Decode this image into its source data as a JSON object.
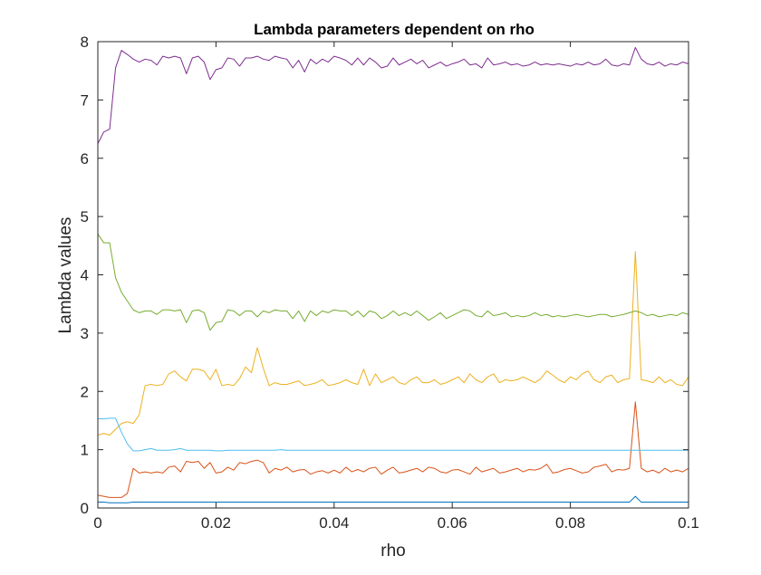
{
  "chart_data": {
    "type": "line",
    "title": "Lambda parameters dependent on rho",
    "xlabel": "rho",
    "ylabel": "Lambda values",
    "xlim": [
      0,
      0.1
    ],
    "ylim": [
      0,
      8
    ],
    "xticks": [
      0,
      0.02,
      0.04,
      0.06,
      0.08,
      0.1
    ],
    "xtick_labels": [
      "0",
      "0.02",
      "0.04",
      "0.06",
      "0.08",
      "0.1"
    ],
    "yticks": [
      0,
      1,
      2,
      3,
      4,
      5,
      6,
      7,
      8
    ],
    "ytick_labels": [
      "0",
      "1",
      "2",
      "3",
      "4",
      "5",
      "6",
      "7",
      "8"
    ],
    "grid": false,
    "legend": "none",
    "x": [
      0,
      0.001,
      0.002,
      0.003,
      0.004,
      0.005,
      0.006,
      0.007,
      0.008,
      0.009,
      0.01,
      0.011,
      0.012,
      0.013,
      0.014,
      0.015,
      0.016,
      0.017,
      0.018,
      0.019,
      0.02,
      0.021,
      0.022,
      0.023,
      0.024,
      0.025,
      0.026,
      0.027,
      0.028,
      0.029,
      0.03,
      0.031,
      0.032,
      0.033,
      0.034,
      0.035,
      0.036,
      0.037,
      0.038,
      0.039,
      0.04,
      0.041,
      0.042,
      0.043,
      0.044,
      0.045,
      0.046,
      0.047,
      0.048,
      0.049,
      0.05,
      0.051,
      0.052,
      0.053,
      0.054,
      0.055,
      0.056,
      0.057,
      0.058,
      0.059,
      0.06,
      0.061,
      0.062,
      0.063,
      0.064,
      0.065,
      0.066,
      0.067,
      0.068,
      0.069,
      0.07,
      0.071,
      0.072,
      0.073,
      0.074,
      0.075,
      0.076,
      0.077,
      0.078,
      0.079,
      0.08,
      0.081,
      0.082,
      0.083,
      0.084,
      0.085,
      0.086,
      0.087,
      0.088,
      0.089,
      0.09,
      0.091,
      0.092,
      0.093,
      0.094,
      0.095,
      0.096,
      0.097,
      0.098,
      0.099,
      0.1
    ],
    "series": [
      {
        "color": "#0072BD",
        "values": [
          0.1,
          0.1,
          0.09,
          0.09,
          0.09,
          0.09,
          0.1,
          0.1,
          0.1,
          0.1,
          0.1,
          0.1,
          0.1,
          0.1,
          0.1,
          0.1,
          0.1,
          0.1,
          0.1,
          0.1,
          0.1,
          0.1,
          0.1,
          0.1,
          0.1,
          0.1,
          0.1,
          0.1,
          0.1,
          0.1,
          0.1,
          0.1,
          0.1,
          0.1,
          0.1,
          0.1,
          0.1,
          0.1,
          0.1,
          0.1,
          0.1,
          0.1,
          0.1,
          0.1,
          0.1,
          0.1,
          0.1,
          0.1,
          0.1,
          0.1,
          0.1,
          0.1,
          0.1,
          0.1,
          0.1,
          0.1,
          0.1,
          0.1,
          0.1,
          0.1,
          0.1,
          0.1,
          0.1,
          0.1,
          0.1,
          0.1,
          0.1,
          0.1,
          0.1,
          0.1,
          0.1,
          0.1,
          0.1,
          0.1,
          0.1,
          0.1,
          0.1,
          0.1,
          0.1,
          0.1,
          0.1,
          0.1,
          0.1,
          0.1,
          0.1,
          0.1,
          0.1,
          0.1,
          0.1,
          0.1,
          0.1,
          0.2,
          0.1,
          0.1,
          0.1,
          0.1,
          0.1,
          0.1,
          0.1,
          0.1,
          0.1
        ]
      },
      {
        "color": "#D95319",
        "values": [
          0.22,
          0.2,
          0.18,
          0.18,
          0.18,
          0.25,
          0.68,
          0.6,
          0.62,
          0.6,
          0.62,
          0.6,
          0.7,
          0.72,
          0.62,
          0.8,
          0.78,
          0.8,
          0.68,
          0.78,
          0.6,
          0.62,
          0.7,
          0.65,
          0.78,
          0.76,
          0.8,
          0.82,
          0.78,
          0.6,
          0.68,
          0.65,
          0.7,
          0.62,
          0.65,
          0.66,
          0.58,
          0.62,
          0.64,
          0.6,
          0.65,
          0.6,
          0.7,
          0.62,
          0.66,
          0.62,
          0.68,
          0.7,
          0.58,
          0.65,
          0.7,
          0.6,
          0.62,
          0.65,
          0.68,
          0.62,
          0.7,
          0.68,
          0.62,
          0.6,
          0.65,
          0.66,
          0.62,
          0.58,
          0.7,
          0.62,
          0.65,
          0.68,
          0.6,
          0.62,
          0.65,
          0.68,
          0.62,
          0.66,
          0.65,
          0.68,
          0.75,
          0.6,
          0.62,
          0.66,
          0.68,
          0.64,
          0.6,
          0.62,
          0.7,
          0.72,
          0.75,
          0.62,
          0.66,
          0.65,
          0.68,
          1.82,
          0.68,
          0.62,
          0.65,
          0.6,
          0.68,
          0.62,
          0.65,
          0.62,
          0.68
        ]
      },
      {
        "color": "#EDB120",
        "values": [
          1.25,
          1.28,
          1.25,
          1.35,
          1.45,
          1.48,
          1.45,
          1.6,
          2.1,
          2.12,
          2.1,
          2.12,
          2.3,
          2.35,
          2.25,
          2.18,
          2.38,
          2.38,
          2.35,
          2.2,
          2.38,
          2.1,
          2.12,
          2.1,
          2.22,
          2.42,
          2.32,
          2.75,
          2.4,
          2.1,
          2.15,
          2.12,
          2.12,
          2.15,
          2.18,
          2.1,
          2.12,
          2.15,
          2.2,
          2.1,
          2.12,
          2.15,
          2.2,
          2.15,
          2.12,
          2.38,
          2.1,
          2.3,
          2.15,
          2.2,
          2.25,
          2.15,
          2.12,
          2.2,
          2.25,
          2.15,
          2.15,
          2.2,
          2.12,
          2.15,
          2.2,
          2.25,
          2.15,
          2.3,
          2.2,
          2.15,
          2.25,
          2.3,
          2.15,
          2.2,
          2.18,
          2.2,
          2.25,
          2.2,
          2.15,
          2.22,
          2.35,
          2.28,
          2.2,
          2.15,
          2.25,
          2.2,
          2.3,
          2.35,
          2.2,
          2.15,
          2.25,
          2.28,
          2.15,
          2.2,
          2.22,
          4.4,
          2.2,
          2.18,
          2.15,
          2.25,
          2.15,
          2.2,
          2.12,
          2.1,
          2.25
        ]
      },
      {
        "color": "#7E2F8E",
        "values": [
          6.25,
          6.45,
          6.5,
          7.55,
          7.85,
          7.78,
          7.7,
          7.65,
          7.7,
          7.68,
          7.6,
          7.75,
          7.72,
          7.75,
          7.72,
          7.45,
          7.72,
          7.75,
          7.65,
          7.35,
          7.52,
          7.55,
          7.72,
          7.7,
          7.58,
          7.72,
          7.72,
          7.75,
          7.7,
          7.68,
          7.75,
          7.72,
          7.7,
          7.55,
          7.68,
          7.48,
          7.7,
          7.62,
          7.7,
          7.65,
          7.75,
          7.72,
          7.68,
          7.6,
          7.72,
          7.6,
          7.72,
          7.65,
          7.55,
          7.58,
          7.72,
          7.6,
          7.65,
          7.7,
          7.62,
          7.68,
          7.55,
          7.6,
          7.65,
          7.58,
          7.62,
          7.65,
          7.7,
          7.6,
          7.62,
          7.55,
          7.72,
          7.6,
          7.62,
          7.65,
          7.6,
          7.62,
          7.58,
          7.6,
          7.65,
          7.6,
          7.62,
          7.6,
          7.62,
          7.6,
          7.58,
          7.62,
          7.6,
          7.65,
          7.6,
          7.62,
          7.7,
          7.6,
          7.58,
          7.62,
          7.6,
          7.9,
          7.7,
          7.62,
          7.6,
          7.65,
          7.58,
          7.62,
          7.6,
          7.65,
          7.62
        ]
      },
      {
        "color": "#77AC30",
        "values": [
          4.7,
          4.55,
          4.55,
          3.95,
          3.7,
          3.55,
          3.4,
          3.35,
          3.38,
          3.38,
          3.32,
          3.4,
          3.4,
          3.38,
          3.4,
          3.18,
          3.38,
          3.4,
          3.35,
          3.05,
          3.18,
          3.2,
          3.4,
          3.38,
          3.3,
          3.38,
          3.38,
          3.28,
          3.38,
          3.35,
          3.4,
          3.38,
          3.38,
          3.25,
          3.38,
          3.2,
          3.38,
          3.3,
          3.38,
          3.35,
          3.4,
          3.38,
          3.38,
          3.3,
          3.38,
          3.28,
          3.38,
          3.35,
          3.25,
          3.3,
          3.38,
          3.3,
          3.35,
          3.3,
          3.38,
          3.3,
          3.22,
          3.28,
          3.35,
          3.25,
          3.3,
          3.35,
          3.4,
          3.38,
          3.3,
          3.28,
          3.38,
          3.3,
          3.32,
          3.35,
          3.28,
          3.3,
          3.28,
          3.3,
          3.35,
          3.3,
          3.32,
          3.28,
          3.3,
          3.28,
          3.3,
          3.32,
          3.3,
          3.28,
          3.3,
          3.32,
          3.32,
          3.28,
          3.3,
          3.32,
          3.35,
          3.38,
          3.35,
          3.3,
          3.32,
          3.28,
          3.3,
          3.32,
          3.3,
          3.35,
          3.32
        ]
      },
      {
        "color": "#4DBEEE",
        "values": [
          1.53,
          1.53,
          1.54,
          1.54,
          1.3,
          1.1,
          0.98,
          0.98,
          1.0,
          1.02,
          0.99,
          0.99,
          0.99,
          1.0,
          1.02,
          0.99,
          0.99,
          0.99,
          0.99,
          0.99,
          0.98,
          0.98,
          0.99,
          0.99,
          0.99,
          0.99,
          0.99,
          0.99,
          0.99,
          0.99,
          0.99,
          1.0,
          0.99,
          0.99,
          0.99,
          0.99,
          0.99,
          0.99,
          0.99,
          0.99,
          0.99,
          0.99,
          0.99,
          0.99,
          0.99,
          0.99,
          0.99,
          0.99,
          0.99,
          0.99,
          0.99,
          0.99,
          0.99,
          0.99,
          0.99,
          0.99,
          0.99,
          0.99,
          0.99,
          0.99,
          0.99,
          0.99,
          0.99,
          0.99,
          0.99,
          0.99,
          0.99,
          0.99,
          0.99,
          0.99,
          0.99,
          0.99,
          0.99,
          0.99,
          0.99,
          0.99,
          0.99,
          0.99,
          0.99,
          0.99,
          0.99,
          0.99,
          0.99,
          0.99,
          0.99,
          0.99,
          0.99,
          0.99,
          0.99,
          0.99,
          0.99,
          0.99,
          0.99,
          0.99,
          0.99,
          0.99,
          0.99,
          0.99,
          0.99,
          0.99,
          0.99
        ]
      }
    ]
  }
}
